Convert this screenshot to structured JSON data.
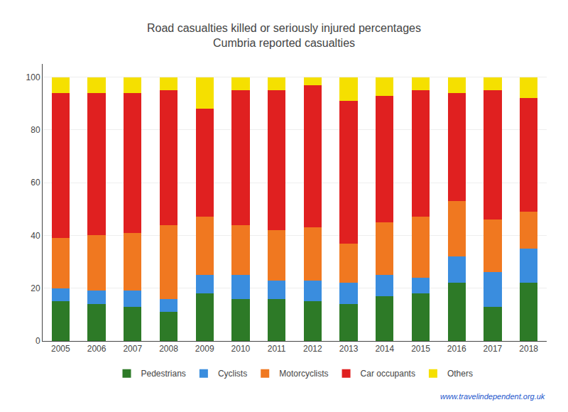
{
  "chart_data": {
    "type": "bar",
    "title": "Road casualties killed or seriously injured percentages",
    "subtitle": "Cumbria reported casualties",
    "categories": [
      "2005",
      "2006",
      "2007",
      "2008",
      "2009",
      "2010",
      "2011",
      "2012",
      "2013",
      "2014",
      "2015",
      "2016",
      "2017",
      "2018"
    ],
    "series": [
      {
        "name": "Pedestrians",
        "color": "#2d7a27",
        "values": [
          15,
          14,
          13,
          11,
          18,
          16,
          16,
          15,
          14,
          17,
          18,
          22,
          13,
          22
        ]
      },
      {
        "name": "Cyclists",
        "color": "#3a8dde",
        "values": [
          5,
          5,
          6,
          5,
          7,
          9,
          7,
          8,
          8,
          8,
          6,
          10,
          13,
          13
        ]
      },
      {
        "name": "Motorcyclists",
        "color": "#f07820",
        "values": [
          19,
          21,
          22,
          28,
          22,
          19,
          19,
          20,
          15,
          20,
          23,
          21,
          20,
          14
        ]
      },
      {
        "name": "Car occupants",
        "color": "#e02020",
        "values": [
          55,
          54,
          53,
          51,
          41,
          51,
          53,
          54,
          54,
          48,
          48,
          41,
          49,
          43
        ]
      },
      {
        "name": "Others",
        "color": "#f5e000",
        "values": [
          6,
          6,
          6,
          5,
          12,
          5,
          5,
          3,
          9,
          7,
          5,
          6,
          5,
          8
        ]
      }
    ],
    "stacked": true,
    "ylim": [
      0,
      105
    ],
    "yticks": [
      0,
      20,
      40,
      60,
      80,
      100
    ],
    "grid": true,
    "legend": "bottom",
    "annotations": [
      "www.travelindependent.org.uk"
    ]
  }
}
